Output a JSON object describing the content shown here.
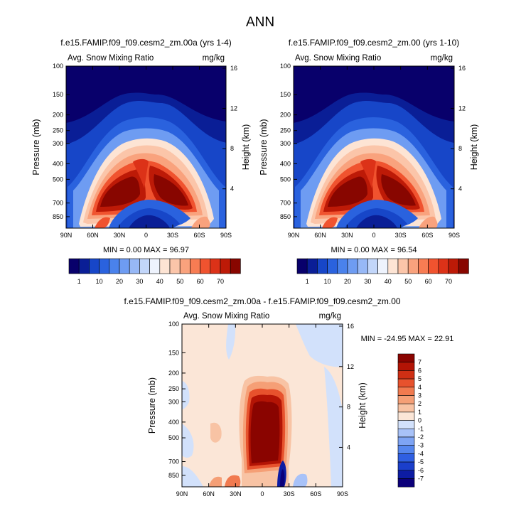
{
  "main_title": "ANN",
  "colors": {
    "blues": [
      "#08006b",
      "#0a1e96",
      "#1746c8",
      "#2a62de",
      "#4a82ec",
      "#6e9cf2",
      "#97b8f6",
      "#c2d6fa",
      "#eef3fd"
    ],
    "reds": [
      "#fde4d4",
      "#fbc5a9",
      "#f9a27d",
      "#f77c53",
      "#f0532f",
      "#dc3218",
      "#bd1a07",
      "#880600"
    ],
    "diff_scale": [
      "#0c007a",
      "#0d1ca3",
      "#1b3fcb",
      "#2f5fe2",
      "#5586ee",
      "#7ea4f4",
      "#a8c2f8",
      "#d2e1fb",
      "#fbe6d7",
      "#f8c3a4",
      "#f59f76",
      "#f17a4f",
      "#e7522d",
      "#cf2f14",
      "#b31405",
      "#8a0400"
    ]
  },
  "chart_data": [
    {
      "type": "heatmap",
      "title": "f.e15.FAMIP.f09_f09.cesm2_zm.00a (yrs 1-4)",
      "left_label": "Avg. Snow Mixing Ratio",
      "right_label": "mg/kg",
      "ylabel": "Pressure (mb)",
      "ylabel_right": "Height (km)",
      "x_ticks": [
        "90N",
        "60N",
        "30N",
        "0",
        "30S",
        "60S",
        "90S"
      ],
      "y_ticks": [
        "100",
        "150",
        "200",
        "250",
        "300",
        "400",
        "500",
        "700",
        "850"
      ],
      "y_ticks_right": [
        "16",
        "12",
        "8",
        "4"
      ],
      "stats": "MIN =  0.00  MAX = 96.97",
      "colorbar_labels": [
        "1",
        "10",
        "20",
        "30",
        "40",
        "50",
        "60",
        "70"
      ]
    },
    {
      "type": "heatmap",
      "title": "f.e15.FAMIP.f09_f09.cesm2_zm.00 (yrs 1-10)",
      "left_label": "Avg. Snow Mixing Ratio",
      "right_label": "mg/kg",
      "ylabel": "Pressure (mb)",
      "ylabel_right": "Height (km)",
      "x_ticks": [
        "90N",
        "60N",
        "30N",
        "0",
        "30S",
        "60S",
        "90S"
      ],
      "y_ticks": [
        "100",
        "150",
        "200",
        "250",
        "300",
        "400",
        "500",
        "700",
        "850"
      ],
      "y_ticks_right": [
        "16",
        "12",
        "8",
        "4"
      ],
      "stats": "MIN =  0.00  MAX = 96.54",
      "colorbar_labels": [
        "1",
        "10",
        "20",
        "30",
        "40",
        "50",
        "60",
        "70"
      ]
    },
    {
      "type": "heatmap",
      "title": "f.e15.FAMIP.f09_f09.cesm2_zm.00a - f.e15.FAMIP.f09_f09.cesm2_zm.00",
      "left_label": "Avg. Snow Mixing Ratio",
      "right_label": "mg/kg",
      "ylabel": "Pressure (mb)",
      "ylabel_right": "Height (km)",
      "x_ticks": [
        "90N",
        "60N",
        "30N",
        "0",
        "30S",
        "60S",
        "90S"
      ],
      "y_ticks": [
        "100",
        "150",
        "200",
        "250",
        "300",
        "400",
        "500",
        "700",
        "850"
      ],
      "y_ticks_right": [
        "16",
        "12",
        "8",
        "4"
      ],
      "stats": "MIN = -24.95  MAX =  22.91",
      "colorbar_labels": [
        "7",
        "6",
        "5",
        "4",
        "3",
        "2",
        "1",
        "0",
        "-1",
        "-2",
        "-3",
        "-4",
        "-5",
        "-6",
        "-7"
      ]
    }
  ]
}
